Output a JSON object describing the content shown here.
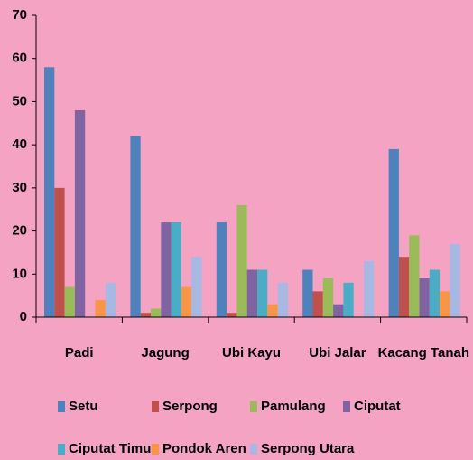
{
  "chart_data": {
    "type": "bar",
    "categories": [
      "Padi",
      "Jagung",
      "Ubi Kayu",
      "Ubi Jalar",
      "Kacang Tanah"
    ],
    "series": [
      {
        "name": "Setu",
        "color": "#4f81bd",
        "values": [
          58,
          42,
          22,
          11,
          39
        ]
      },
      {
        "name": "Serpong",
        "color": "#c0504d",
        "values": [
          30,
          1,
          1,
          6,
          14
        ]
      },
      {
        "name": "Pamulang",
        "color": "#9bbb59",
        "values": [
          7,
          2,
          26,
          9,
          19
        ]
      },
      {
        "name": "Ciputat",
        "color": "#8064a2",
        "values": [
          48,
          22,
          11,
          3,
          9
        ]
      },
      {
        "name": "Ciputat Timur",
        "color": "#4bacc6",
        "values": [
          0,
          22,
          11,
          8,
          11
        ]
      },
      {
        "name": "Pondok Aren",
        "color": "#f79646",
        "values": [
          4,
          7,
          3,
          0,
          6
        ]
      },
      {
        "name": "Serpong Utara",
        "color": "#a7b9e3",
        "values": [
          8,
          14,
          8,
          13,
          17
        ]
      }
    ],
    "ylim": [
      0,
      70
    ],
    "yticks": [
      0,
      10,
      20,
      30,
      40,
      50,
      60,
      70
    ],
    "legend": "bottom"
  }
}
